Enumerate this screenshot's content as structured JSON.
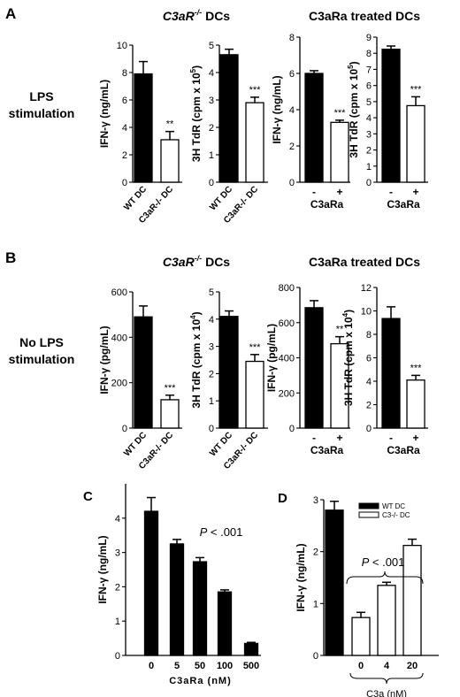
{
  "colors": {
    "filled": "#000000",
    "open": "#ffffff",
    "stroke": "#000000"
  },
  "panel_labels": {
    "A": "A",
    "B": "B",
    "C": "C",
    "D": "D"
  },
  "section_labels": {
    "lps": [
      "LPS",
      "stimulation"
    ],
    "nolps": [
      "No LPS",
      "stimulation"
    ]
  },
  "group_titles": {
    "knockout": "C3aR",
    "knockout_sup": "-/-",
    "knockout_suffix": " DCs",
    "treated": "C3aRa treated DCs"
  },
  "chart_data": [
    {
      "id": "A1",
      "type": "bar",
      "panel": "A",
      "categories": [
        "WT DC",
        "C3aR-/- DC"
      ],
      "category_rotated": true,
      "values": [
        7.9,
        3.1
      ],
      "errors": [
        0.9,
        0.6
      ],
      "fills": [
        "filled",
        "open"
      ],
      "significance": [
        "",
        "**"
      ],
      "ylabel": "IFN-γ (ng/mL)",
      "ylabel_sup": "",
      "ylim": [
        0,
        10
      ],
      "yticks": [
        "0",
        "2",
        "4",
        "6",
        "8",
        "10"
      ],
      "xtitle": ""
    },
    {
      "id": "A2",
      "type": "bar",
      "panel": "A",
      "categories": [
        "WT DC",
        "C3aR-/- DC"
      ],
      "category_rotated": true,
      "values": [
        4.65,
        2.9
      ],
      "errors": [
        0.2,
        0.2
      ],
      "fills": [
        "filled",
        "open"
      ],
      "significance": [
        "",
        "***"
      ],
      "ylabel": "3H TdR (cpm x 10",
      "ylabel_sup": "5",
      "ylabel_end": ")",
      "ylim": [
        0,
        5
      ],
      "yticks": [
        "0",
        "1",
        "2",
        "3",
        "4",
        "5"
      ],
      "xtitle": ""
    },
    {
      "id": "A3",
      "type": "bar",
      "panel": "A",
      "categories": [
        "-",
        "+"
      ],
      "category_rotated": false,
      "values": [
        6.0,
        3.3
      ],
      "errors": [
        0.15,
        0.12
      ],
      "fills": [
        "filled",
        "open"
      ],
      "significance": [
        "",
        "***"
      ],
      "ylabel": "IFN-γ (ng/mL)",
      "ylabel_sup": "",
      "ylim": [
        0,
        8
      ],
      "yticks": [
        "0",
        "2",
        "4",
        "6",
        "8"
      ],
      "xtitle": "C3aRa"
    },
    {
      "id": "A4",
      "type": "bar",
      "panel": "A",
      "categories": [
        "-",
        "+"
      ],
      "category_rotated": false,
      "values": [
        8.25,
        4.75
      ],
      "errors": [
        0.2,
        0.55
      ],
      "fills": [
        "filled",
        "open"
      ],
      "significance": [
        "",
        "***"
      ],
      "ylabel": "3H TdR (cpm x 10",
      "ylabel_sup": "5",
      "ylabel_end": ")",
      "ylim": [
        0,
        9
      ],
      "yticks": [
        "0",
        "1",
        "2",
        "3",
        "4",
        "5",
        "6",
        "7",
        "8",
        "9"
      ],
      "xtitle": "C3aRa"
    },
    {
      "id": "B1",
      "type": "bar",
      "panel": "B",
      "categories": [
        "WT DC",
        "C3aR-/- DC"
      ],
      "category_rotated": true,
      "values": [
        490,
        125
      ],
      "errors": [
        48,
        20
      ],
      "fills": [
        "filled",
        "open"
      ],
      "significance": [
        "",
        "***"
      ],
      "ylabel": "IFN-γ (pg/mL)",
      "ylabel_sup": "",
      "ylim": [
        0,
        600
      ],
      "yticks": [
        "0",
        "200",
        "400",
        "600"
      ],
      "xtitle": ""
    },
    {
      "id": "B2",
      "type": "bar",
      "panel": "B",
      "categories": [
        "WT DC",
        "C3aR-/- DC"
      ],
      "category_rotated": true,
      "values": [
        4.1,
        2.45
      ],
      "errors": [
        0.2,
        0.25
      ],
      "fills": [
        "filled",
        "open"
      ],
      "significance": [
        "",
        "***"
      ],
      "ylabel": "3H TdR (cpm x 10",
      "ylabel_sup": "4",
      "ylabel_end": ")",
      "ylim": [
        0,
        5
      ],
      "yticks": [
        "0",
        "1",
        "2",
        "3",
        "4",
        "5"
      ],
      "xtitle": ""
    },
    {
      "id": "B3",
      "type": "bar",
      "panel": "B",
      "categories": [
        "-",
        "+"
      ],
      "category_rotated": false,
      "values": [
        685,
        480
      ],
      "errors": [
        40,
        40
      ],
      "fills": [
        "filled",
        "open"
      ],
      "significance": [
        "",
        "**"
      ],
      "ylabel": "IFN-γ (pg/mL)",
      "ylabel_sup": "",
      "ylim": [
        0,
        800
      ],
      "yticks": [
        "0",
        "200",
        "400",
        "600",
        "800"
      ],
      "xtitle": "C3aRa"
    },
    {
      "id": "B4",
      "type": "bar",
      "panel": "B",
      "categories": [
        "-",
        "+"
      ],
      "category_rotated": false,
      "values": [
        9.35,
        4.1
      ],
      "errors": [
        1.0,
        0.4
      ],
      "fills": [
        "filled",
        "open"
      ],
      "significance": [
        "",
        "***"
      ],
      "ylabel": "3H TdR (cpm x 10",
      "ylabel_sup": "4",
      "ylabel_end": ")",
      "ylim": [
        0,
        12
      ],
      "yticks": [
        "0",
        "2",
        "4",
        "6",
        "8",
        "10",
        "12"
      ],
      "xtitle": "C3aRa"
    },
    {
      "id": "C",
      "type": "bar",
      "panel": "C",
      "categories": [
        "0",
        "5",
        "50",
        "100",
        "500"
      ],
      "category_rotated": false,
      "values": [
        4.2,
        3.25,
        2.73,
        1.85,
        0.35
      ],
      "errors": [
        0.4,
        0.13,
        0.12,
        0.06,
        0.03
      ],
      "fills": [
        "filled",
        "filled",
        "filled",
        "filled",
        "filled"
      ],
      "significance": [
        "",
        "",
        "",
        "",
        ""
      ],
      "ylabel": "IFN-γ (ng/mL)",
      "ylabel_sup": "",
      "ylim": [
        0,
        5
      ],
      "yticks": [
        "0",
        "1",
        "2",
        "3",
        "4"
      ],
      "xtitle": "C3aRa (nM)",
      "annotation": "P < .001"
    },
    {
      "id": "D",
      "type": "bar",
      "panel": "D",
      "categories": [
        "",
        "0",
        "4",
        "20"
      ],
      "category_rotated": false,
      "values": [
        2.8,
        0.73,
        1.35,
        2.12
      ],
      "errors": [
        0.17,
        0.1,
        0.06,
        0.12
      ],
      "fills": [
        "filled",
        "open",
        "open",
        "open"
      ],
      "significance": [
        "",
        "",
        "",
        ""
      ],
      "ylabel": "IFN-γ (ng/mL)",
      "ylabel_sup": "",
      "ylim": [
        0,
        3
      ],
      "yticks": [
        "0",
        "1",
        "2",
        "3"
      ],
      "xtitle": "C3a (nM)",
      "annotation": "P < .001",
      "legend": [
        {
          "label": "WT DC",
          "fill": "filled"
        },
        {
          "label": "C3-/- DC",
          "fill": "open"
        }
      ]
    }
  ]
}
